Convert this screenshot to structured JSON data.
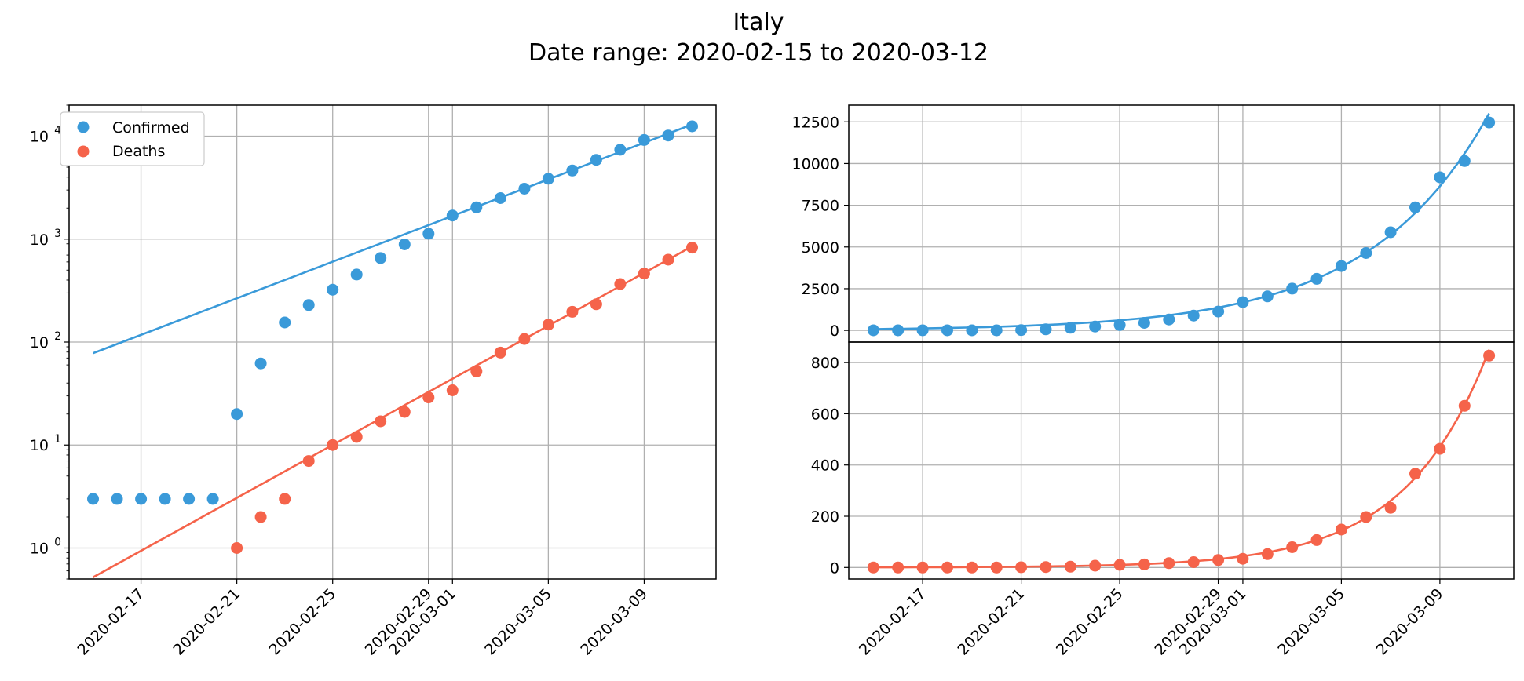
{
  "figure": {
    "title": "Italy",
    "subtitle": "Date range: 2020-02-15 to 2020-03-12"
  },
  "colors": {
    "confirmed": "#3a9ad9",
    "deaths": "#f5634a",
    "grid": "#b0b0b0",
    "axis": "#000000"
  },
  "chart_data": [
    {
      "type": "scatter",
      "id": "log-panel",
      "yscale": "log",
      "ylim": [
        0.5,
        20000
      ],
      "xlim": [
        "2020-02-14",
        "2020-03-12"
      ],
      "grid": true,
      "legend_position": "top-left",
      "xticks": [
        "2020-02-17",
        "2020-02-21",
        "2020-02-25",
        "2020-02-29",
        "2020-03-01",
        "2020-03-05",
        "2020-03-09"
      ],
      "yticks": [
        {
          "value": 1,
          "base": "10",
          "exp": "0"
        },
        {
          "value": 10,
          "base": "10",
          "exp": "1"
        },
        {
          "value": 100,
          "base": "10",
          "exp": "2"
        },
        {
          "value": 1000,
          "base": "10",
          "exp": "3"
        },
        {
          "value": 10000,
          "base": "10",
          "exp": "4"
        }
      ],
      "series": [
        {
          "name": "Confirmed",
          "color_key": "confirmed",
          "points": [
            [
              "2020-02-15",
              3
            ],
            [
              "2020-02-16",
              3
            ],
            [
              "2020-02-17",
              3
            ],
            [
              "2020-02-18",
              3
            ],
            [
              "2020-02-19",
              3
            ],
            [
              "2020-02-20",
              3
            ],
            [
              "2020-02-21",
              20
            ],
            [
              "2020-02-22",
              62
            ],
            [
              "2020-02-23",
              155
            ],
            [
              "2020-02-24",
              229
            ],
            [
              "2020-02-25",
              322
            ],
            [
              "2020-02-26",
              453
            ],
            [
              "2020-02-27",
              655
            ],
            [
              "2020-02-28",
              888
            ],
            [
              "2020-02-29",
              1128
            ],
            [
              "2020-03-01",
              1694
            ],
            [
              "2020-03-02",
              2036
            ],
            [
              "2020-03-03",
              2502
            ],
            [
              "2020-03-04",
              3089
            ],
            [
              "2020-03-05",
              3858
            ],
            [
              "2020-03-06",
              4636
            ],
            [
              "2020-03-07",
              5883
            ],
            [
              "2020-03-08",
              7375
            ],
            [
              "2020-03-09",
              9172
            ],
            [
              "2020-03-10",
              10149
            ],
            [
              "2020-03-11",
              12462
            ]
          ],
          "fit_line": [
            [
              "2020-02-15",
              78
            ],
            [
              "2020-03-11",
              13000
            ]
          ]
        },
        {
          "name": "Deaths",
          "color_key": "deaths",
          "points": [
            [
              "2020-02-21",
              1
            ],
            [
              "2020-02-22",
              2
            ],
            [
              "2020-02-23",
              3
            ],
            [
              "2020-02-24",
              7
            ],
            [
              "2020-02-25",
              10
            ],
            [
              "2020-02-26",
              12
            ],
            [
              "2020-02-27",
              17
            ],
            [
              "2020-02-28",
              21
            ],
            [
              "2020-02-29",
              29
            ],
            [
              "2020-03-01",
              34
            ],
            [
              "2020-03-02",
              52
            ],
            [
              "2020-03-03",
              79
            ],
            [
              "2020-03-04",
              107
            ],
            [
              "2020-03-05",
              148
            ],
            [
              "2020-03-06",
              197
            ],
            [
              "2020-03-07",
              233
            ],
            [
              "2020-03-08",
              366
            ],
            [
              "2020-03-09",
              463
            ],
            [
              "2020-03-10",
              631
            ],
            [
              "2020-03-11",
              827
            ]
          ],
          "fit_line": [
            [
              "2020-02-15",
              0.52
            ],
            [
              "2020-03-11",
              850
            ]
          ]
        }
      ]
    },
    {
      "type": "scatter",
      "id": "linear-confirmed",
      "ylim": [
        -700,
        13500
      ],
      "xlim": [
        "2020-02-14",
        "2020-03-12"
      ],
      "grid": true,
      "yticks": [
        0,
        2500,
        5000,
        7500,
        10000,
        12500
      ],
      "series": [
        {
          "name": "Confirmed",
          "color_key": "confirmed",
          "points": [
            [
              "2020-02-15",
              3
            ],
            [
              "2020-02-16",
              3
            ],
            [
              "2020-02-17",
              3
            ],
            [
              "2020-02-18",
              3
            ],
            [
              "2020-02-19",
              3
            ],
            [
              "2020-02-20",
              3
            ],
            [
              "2020-02-21",
              20
            ],
            [
              "2020-02-22",
              62
            ],
            [
              "2020-02-23",
              155
            ],
            [
              "2020-02-24",
              229
            ],
            [
              "2020-02-25",
              322
            ],
            [
              "2020-02-26",
              453
            ],
            [
              "2020-02-27",
              655
            ],
            [
              "2020-02-28",
              888
            ],
            [
              "2020-02-29",
              1128
            ],
            [
              "2020-03-01",
              1694
            ],
            [
              "2020-03-02",
              2036
            ],
            [
              "2020-03-03",
              2502
            ],
            [
              "2020-03-04",
              3089
            ],
            [
              "2020-03-05",
              3858
            ],
            [
              "2020-03-06",
              4636
            ],
            [
              "2020-03-07",
              5883
            ],
            [
              "2020-03-08",
              7375
            ],
            [
              "2020-03-09",
              9172
            ],
            [
              "2020-03-10",
              10149
            ],
            [
              "2020-03-11",
              12462
            ]
          ],
          "fit": {
            "kind": "exponential",
            "start_value": 78,
            "end_value": 13000
          }
        }
      ]
    },
    {
      "type": "scatter",
      "id": "linear-deaths",
      "ylim": [
        -45,
        880
      ],
      "xlim": [
        "2020-02-14",
        "2020-03-12"
      ],
      "grid": true,
      "xticks": [
        "2020-02-17",
        "2020-02-21",
        "2020-02-25",
        "2020-02-29",
        "2020-03-01",
        "2020-03-05",
        "2020-03-09"
      ],
      "yticks": [
        0,
        200,
        400,
        600,
        800
      ],
      "series": [
        {
          "name": "Deaths",
          "color_key": "deaths",
          "points": [
            [
              "2020-02-15",
              0
            ],
            [
              "2020-02-16",
              0
            ],
            [
              "2020-02-17",
              0
            ],
            [
              "2020-02-18",
              0
            ],
            [
              "2020-02-19",
              0
            ],
            [
              "2020-02-20",
              0
            ],
            [
              "2020-02-21",
              1
            ],
            [
              "2020-02-22",
              2
            ],
            [
              "2020-02-23",
              3
            ],
            [
              "2020-02-24",
              7
            ],
            [
              "2020-02-25",
              10
            ],
            [
              "2020-02-26",
              12
            ],
            [
              "2020-02-27",
              17
            ],
            [
              "2020-02-28",
              21
            ],
            [
              "2020-02-29",
              29
            ],
            [
              "2020-03-01",
              34
            ],
            [
              "2020-03-02",
              52
            ],
            [
              "2020-03-03",
              79
            ],
            [
              "2020-03-04",
              107
            ],
            [
              "2020-03-05",
              148
            ],
            [
              "2020-03-06",
              197
            ],
            [
              "2020-03-07",
              233
            ],
            [
              "2020-03-08",
              366
            ],
            [
              "2020-03-09",
              463
            ],
            [
              "2020-03-10",
              631
            ],
            [
              "2020-03-11",
              827
            ]
          ],
          "fit": {
            "kind": "exponential",
            "start_value": 0.52,
            "end_value": 850
          }
        }
      ]
    }
  ]
}
